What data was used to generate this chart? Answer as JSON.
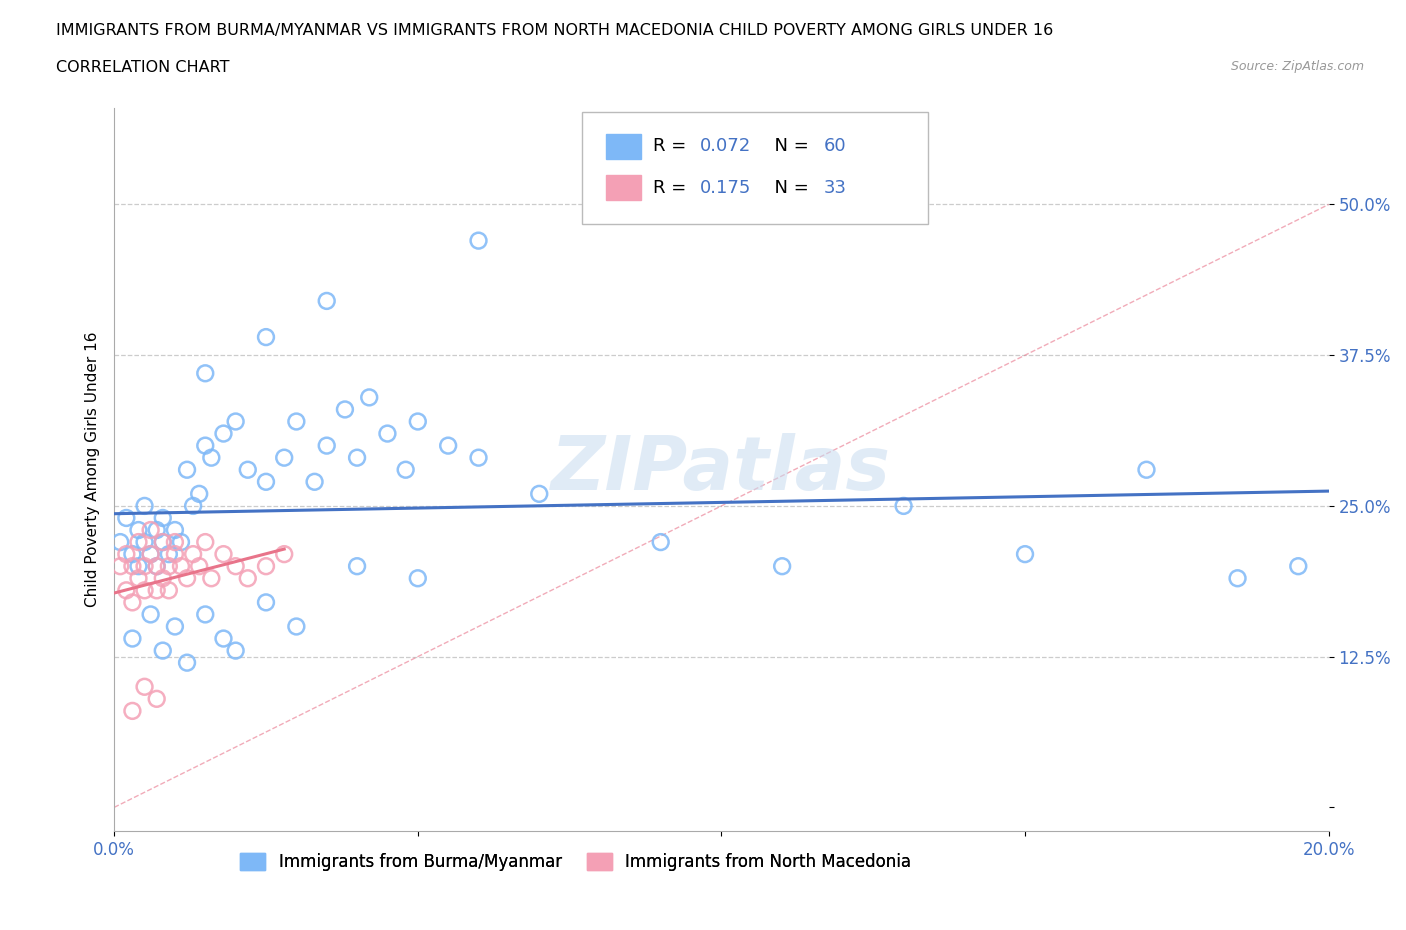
{
  "title_line1": "IMMIGRANTS FROM BURMA/MYANMAR VS IMMIGRANTS FROM NORTH MACEDONIA CHILD POVERTY AMONG GIRLS UNDER 16",
  "title_line2": "CORRELATION CHART",
  "source": "Source: ZipAtlas.com",
  "ylabel": "Child Poverty Among Girls Under 16",
  "xlim": [
    0.0,
    0.2
  ],
  "ylim": [
    -0.02,
    0.58
  ],
  "ytick_positions": [
    0.0,
    0.125,
    0.25,
    0.375,
    0.5
  ],
  "ytick_labels": [
    "",
    "12.5%",
    "25.0%",
    "37.5%",
    "50.0%"
  ],
  "xtick_positions": [
    0.0,
    0.05,
    0.1,
    0.15,
    0.2
  ],
  "xtick_labels": [
    "0.0%",
    "",
    "",
    "",
    "20.0%"
  ],
  "color_burma": "#7EB8F7",
  "color_macedonia": "#F4A0B5",
  "color_burma_line": "#4472C4",
  "color_macedonia_line": "#E8748A",
  "color_diag": "#E8748A",
  "color_tick": "#4472C4",
  "R_burma": 0.072,
  "N_burma": 60,
  "R_macedonia": 0.175,
  "N_macedonia": 33,
  "watermark": "ZIPatlas",
  "legend_label_burma": "Immigrants from Burma/Myanmar",
  "legend_label_macedonia": "Immigrants from North Macedonia",
  "burma_x": [
    0.001,
    0.002,
    0.003,
    0.004,
    0.004,
    0.005,
    0.005,
    0.006,
    0.007,
    0.007,
    0.008,
    0.008,
    0.009,
    0.01,
    0.011,
    0.012,
    0.013,
    0.014,
    0.015,
    0.016,
    0.018,
    0.02,
    0.022,
    0.025,
    0.028,
    0.03,
    0.033,
    0.035,
    0.038,
    0.04,
    0.042,
    0.045,
    0.048,
    0.05,
    0.055,
    0.06,
    0.003,
    0.006,
    0.008,
    0.01,
    0.012,
    0.015,
    0.018,
    0.02,
    0.025,
    0.03,
    0.04,
    0.05,
    0.07,
    0.09,
    0.11,
    0.13,
    0.15,
    0.17,
    0.185,
    0.195,
    0.06,
    0.035,
    0.025,
    0.015
  ],
  "burma_y": [
    0.22,
    0.24,
    0.21,
    0.2,
    0.23,
    0.25,
    0.22,
    0.21,
    0.23,
    0.2,
    0.22,
    0.24,
    0.21,
    0.23,
    0.22,
    0.28,
    0.25,
    0.26,
    0.3,
    0.29,
    0.31,
    0.32,
    0.28,
    0.27,
    0.29,
    0.32,
    0.27,
    0.3,
    0.33,
    0.29,
    0.34,
    0.31,
    0.28,
    0.32,
    0.3,
    0.29,
    0.14,
    0.16,
    0.13,
    0.15,
    0.12,
    0.16,
    0.14,
    0.13,
    0.17,
    0.15,
    0.2,
    0.19,
    0.26,
    0.22,
    0.2,
    0.25,
    0.21,
    0.28,
    0.19,
    0.2,
    0.47,
    0.42,
    0.39,
    0.36
  ],
  "macedonia_x": [
    0.001,
    0.002,
    0.002,
    0.003,
    0.003,
    0.004,
    0.004,
    0.005,
    0.005,
    0.006,
    0.006,
    0.007,
    0.007,
    0.008,
    0.008,
    0.009,
    0.009,
    0.01,
    0.01,
    0.011,
    0.012,
    0.013,
    0.014,
    0.015,
    0.016,
    0.018,
    0.02,
    0.022,
    0.025,
    0.028,
    0.005,
    0.007,
    0.003
  ],
  "macedonia_y": [
    0.2,
    0.18,
    0.21,
    0.17,
    0.2,
    0.19,
    0.22,
    0.18,
    0.2,
    0.21,
    0.23,
    0.18,
    0.2,
    0.19,
    0.22,
    0.2,
    0.18,
    0.21,
    0.22,
    0.2,
    0.19,
    0.21,
    0.2,
    0.22,
    0.19,
    0.21,
    0.2,
    0.19,
    0.2,
    0.21,
    0.1,
    0.09,
    0.08
  ]
}
